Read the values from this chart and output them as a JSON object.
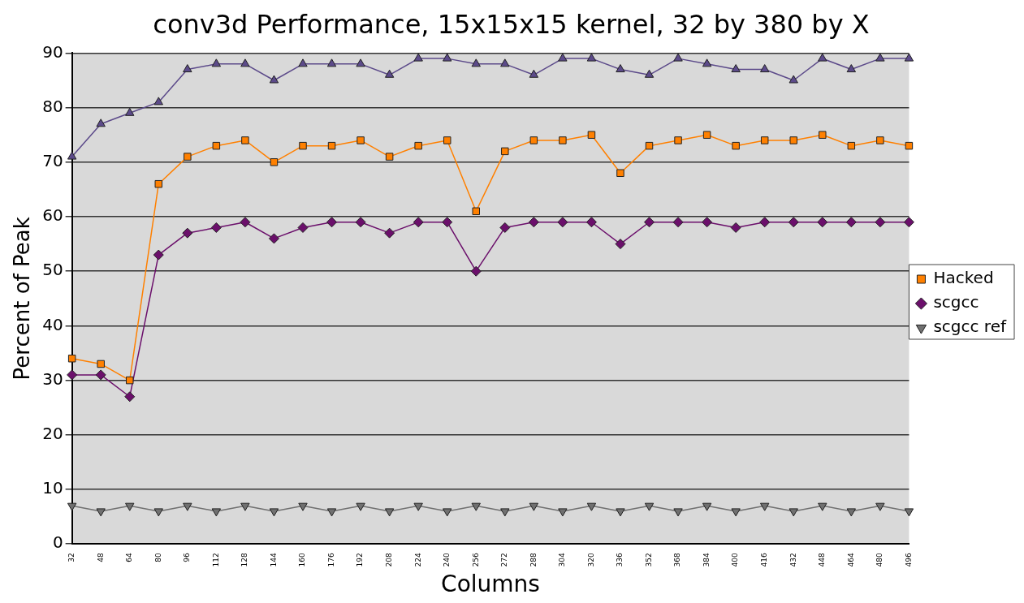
{
  "chart_data": {
    "type": "line",
    "title": "conv3d Performance, 15x15x15 kernel, 32 by 380 by X",
    "xlabel": "Columns",
    "ylabel": "Percent of Peak",
    "categories": [
      "32",
      "48",
      "64",
      "80",
      "96",
      "112",
      "128",
      "144",
      "160",
      "176",
      "192",
      "208",
      "224",
      "240",
      "256",
      "272",
      "288",
      "304",
      "320",
      "336",
      "352",
      "368",
      "384",
      "400",
      "416",
      "432",
      "448",
      "464",
      "480",
      "496"
    ],
    "ylim": [
      0,
      90
    ],
    "yticks": [
      0,
      10,
      20,
      30,
      40,
      50,
      60,
      70,
      80,
      90
    ],
    "grid": "y",
    "legend": "right",
    "series": [
      {
        "name": "Hacked",
        "color": "#ff8000",
        "marker": "square",
        "values": [
          34,
          33,
          30,
          66,
          71,
          73,
          74,
          70,
          73,
          73,
          74,
          71,
          73,
          74,
          61,
          72,
          74,
          74,
          75,
          68,
          73,
          74,
          75,
          73,
          74,
          74,
          75,
          73,
          74,
          73
        ]
      },
      {
        "name": "scgcc",
        "color": "#6b0f6b",
        "marker": "diamond",
        "values": [
          31,
          31,
          27,
          53,
          57,
          58,
          59,
          56,
          58,
          59,
          59,
          57,
          59,
          59,
          50,
          58,
          59,
          59,
          59,
          55,
          59,
          59,
          59,
          58,
          59,
          59,
          59,
          59,
          59,
          59
        ]
      },
      {
        "name": "scgcc ref",
        "color": "#707070",
        "marker": "triangle-down",
        "values": [
          7,
          6,
          7,
          6,
          7,
          6,
          7,
          6,
          7,
          6,
          7,
          6,
          7,
          6,
          7,
          6,
          7,
          6,
          7,
          6,
          7,
          6,
          7,
          6,
          7,
          6,
          7,
          6,
          7,
          6
        ]
      },
      {
        "color": "#5c4a8a",
        "marker": "triangle",
        "values": [
          71,
          77,
          79,
          81,
          87,
          88,
          88,
          85,
          88,
          88,
          88,
          86,
          89,
          89,
          88,
          88,
          86,
          89,
          89,
          87,
          86,
          89,
          88,
          87,
          87,
          85,
          89,
          87,
          89,
          89
        ]
      }
    ]
  }
}
